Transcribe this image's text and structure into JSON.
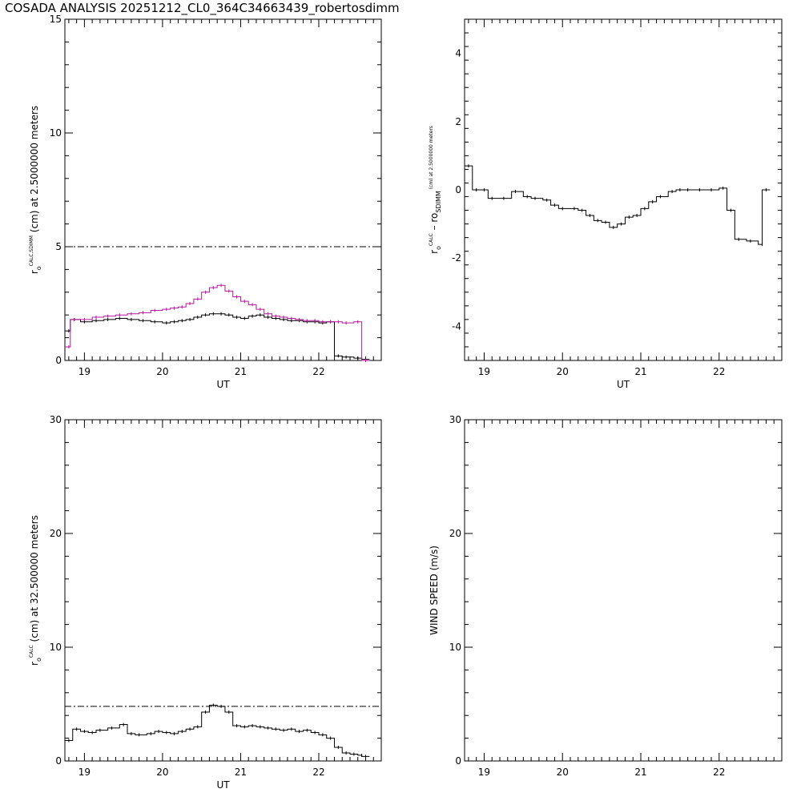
{
  "title": "COSADA ANALYSIS 20251212_CL0_364C34663439_robertosdimm",
  "chart_data": [
    {
      "type": "line",
      "xlabel": "UT",
      "ylabel_parts": [
        "r",
        "o",
        "CALC,SDIMM",
        " (cm)  at  2.5000000 meters"
      ],
      "xlim": [
        18.75,
        22.8
      ],
      "ylim": [
        0,
        15
      ],
      "xticks": [
        19,
        20,
        21,
        22
      ],
      "yticks": [
        0,
        5,
        10,
        15
      ],
      "reference_line": 5,
      "step": true,
      "series": [
        {
          "color": "#000000",
          "x": [
            18.75,
            18.82,
            18.95,
            19.1,
            19.25,
            19.4,
            19.55,
            19.7,
            19.85,
            20.0,
            20.1,
            20.2,
            20.3,
            20.4,
            20.5,
            20.6,
            20.7,
            20.8,
            20.9,
            21.0,
            21.1,
            21.2,
            21.3,
            21.4,
            21.5,
            21.6,
            21.7,
            21.8,
            21.9,
            22.0,
            22.1,
            22.2,
            22.3,
            22.45,
            22.55
          ],
          "y": [
            1.3,
            1.8,
            1.7,
            1.75,
            1.8,
            1.85,
            1.8,
            1.75,
            1.7,
            1.65,
            1.7,
            1.75,
            1.8,
            1.9,
            2.0,
            2.05,
            2.05,
            2.0,
            1.9,
            1.85,
            1.95,
            2.0,
            1.9,
            1.85,
            1.8,
            1.75,
            1.75,
            1.7,
            1.7,
            1.65,
            1.7,
            0.2,
            0.15,
            0.1,
            0.05
          ]
        },
        {
          "color": "#b5179e",
          "x": [
            18.75,
            18.82,
            18.95,
            19.1,
            19.25,
            19.4,
            19.55,
            19.7,
            19.85,
            20.0,
            20.1,
            20.2,
            20.3,
            20.4,
            20.5,
            20.6,
            20.7,
            20.8,
            20.9,
            21.0,
            21.1,
            21.2,
            21.3,
            21.4,
            21.5,
            21.6,
            21.7,
            21.8,
            21.9,
            22.0,
            22.1,
            22.2,
            22.3,
            22.45,
            22.55
          ],
          "y": [
            0.6,
            1.8,
            1.8,
            1.9,
            1.95,
            2.0,
            2.05,
            2.1,
            2.2,
            2.25,
            2.3,
            2.35,
            2.5,
            2.7,
            3.0,
            3.2,
            3.3,
            3.05,
            2.8,
            2.6,
            2.45,
            2.25,
            2.05,
            1.95,
            1.9,
            1.85,
            1.8,
            1.75,
            1.75,
            1.7,
            1.7,
            1.7,
            1.65,
            1.7,
            0.0
          ]
        }
      ]
    },
    {
      "type": "line",
      "xlabel": "UT",
      "ylabel_parts": [
        "r",
        "o",
        "CALC",
        "  – r",
        "o",
        "SDIMM",
        " (cm)  at  2.5000000 meters"
      ],
      "xlim": [
        18.75,
        22.8
      ],
      "ylim": [
        -5,
        5
      ],
      "xticks": [
        19,
        20,
        21,
        22
      ],
      "yticks": [
        -4,
        -2,
        0,
        2,
        4
      ],
      "step": true,
      "series": [
        {
          "color": "#000000",
          "x": [
            18.75,
            18.85,
            18.95,
            19.05,
            19.2,
            19.35,
            19.5,
            19.6,
            19.75,
            19.85,
            19.95,
            20.1,
            20.2,
            20.3,
            20.4,
            20.5,
            20.6,
            20.7,
            20.8,
            20.9,
            21.0,
            21.1,
            21.2,
            21.35,
            21.45,
            21.55,
            21.7,
            21.85,
            22.0,
            22.1,
            22.2,
            22.35,
            22.5,
            22.55
          ],
          "y": [
            0.7,
            0.0,
            0.0,
            -0.25,
            -0.25,
            -0.05,
            -0.2,
            -0.25,
            -0.3,
            -0.45,
            -0.55,
            -0.55,
            -0.6,
            -0.75,
            -0.9,
            -0.95,
            -1.1,
            -1.0,
            -0.8,
            -0.75,
            -0.55,
            -0.35,
            -0.2,
            -0.05,
            0.0,
            0.0,
            0.0,
            0.0,
            0.05,
            -0.6,
            -1.45,
            -1.5,
            -1.6,
            0.0
          ]
        }
      ]
    },
    {
      "type": "line",
      "xlabel": "UT",
      "ylabel_parts": [
        "r",
        "o",
        "CALC",
        " (cm)  at  32.500000 meters"
      ],
      "xlim": [
        18.75,
        22.8
      ],
      "ylim": [
        0,
        30
      ],
      "xticks": [
        19,
        20,
        21,
        22
      ],
      "yticks": [
        0,
        10,
        20,
        30
      ],
      "reference_line": 4.8,
      "step": true,
      "series": [
        {
          "color": "#000000",
          "x": [
            18.75,
            18.85,
            18.95,
            19.05,
            19.15,
            19.3,
            19.45,
            19.55,
            19.65,
            19.8,
            19.9,
            20.0,
            20.1,
            20.2,
            20.3,
            20.4,
            20.5,
            20.6,
            20.7,
            20.8,
            20.9,
            21.0,
            21.1,
            21.2,
            21.3,
            21.4,
            21.5,
            21.6,
            21.7,
            21.8,
            21.9,
            22.0,
            22.1,
            22.2,
            22.3,
            22.4,
            22.5,
            22.55
          ],
          "y": [
            1.8,
            2.8,
            2.6,
            2.5,
            2.7,
            2.9,
            3.2,
            2.4,
            2.3,
            2.4,
            2.6,
            2.5,
            2.4,
            2.6,
            2.8,
            3.0,
            4.3,
            4.9,
            4.8,
            4.3,
            3.1,
            3.0,
            3.1,
            3.0,
            2.9,
            2.8,
            2.7,
            2.8,
            2.6,
            2.7,
            2.5,
            2.3,
            2.0,
            1.2,
            0.7,
            0.6,
            0.5,
            0.4
          ]
        }
      ]
    },
    {
      "type": "line",
      "xlabel": "",
      "ylabel_parts": [
        "WIND SPEED (m/s)"
      ],
      "xlim": [
        18.75,
        22.8
      ],
      "ylim": [
        0,
        30
      ],
      "xticks": [
        19,
        20,
        21,
        22
      ],
      "yticks": [
        0,
        10,
        20,
        30
      ],
      "step": true,
      "series": []
    }
  ]
}
